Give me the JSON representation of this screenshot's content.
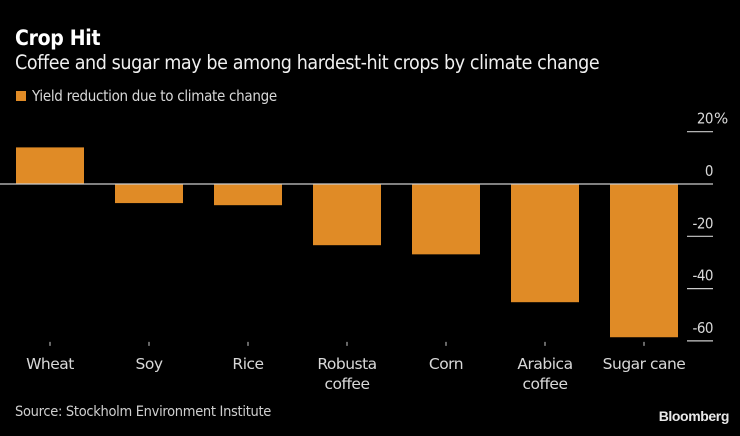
{
  "header": {
    "title": "Crop Hit",
    "subtitle": "Coffee and sugar may be among hardest-hit crops by climate change"
  },
  "legend": {
    "label": "Yield reduction due to climate change"
  },
  "footer": {
    "source": "Source: Stockholm Environment Institute",
    "brand": "Bloomberg"
  },
  "colors": {
    "bar": "#e08b26",
    "background": "#000000",
    "axis": "#cccccc",
    "text": "#d8d8d8"
  },
  "chart_data": {
    "type": "bar",
    "title": "Crop Hit",
    "subtitle": "Coffee and sugar may be among hardest-hit crops by climate change",
    "xlabel": "",
    "ylabel": "",
    "categories": [
      [
        "Wheat"
      ],
      [
        "Soy"
      ],
      [
        "Rice"
      ],
      [
        "Robusta",
        "coffee"
      ],
      [
        "Corn"
      ],
      [
        "Arabica",
        "coffee"
      ],
      [
        "Sugar cane"
      ]
    ],
    "series": [
      {
        "name": "Yield reduction due to climate change",
        "values": [
          14,
          -7.3,
          -8.1,
          -23.4,
          -26.9,
          -45.2,
          -58.6
        ]
      }
    ],
    "ylim": [
      -60,
      20
    ],
    "yticks": [
      20,
      0,
      -20,
      -40,
      -60
    ],
    "ytick_labels": [
      "20%",
      "0",
      "-20",
      "-40",
      "-60"
    ],
    "y_axis_side": "right",
    "grid": false,
    "legend_position": "top-left",
    "source": "Source: Stockholm Environment Institute"
  }
}
